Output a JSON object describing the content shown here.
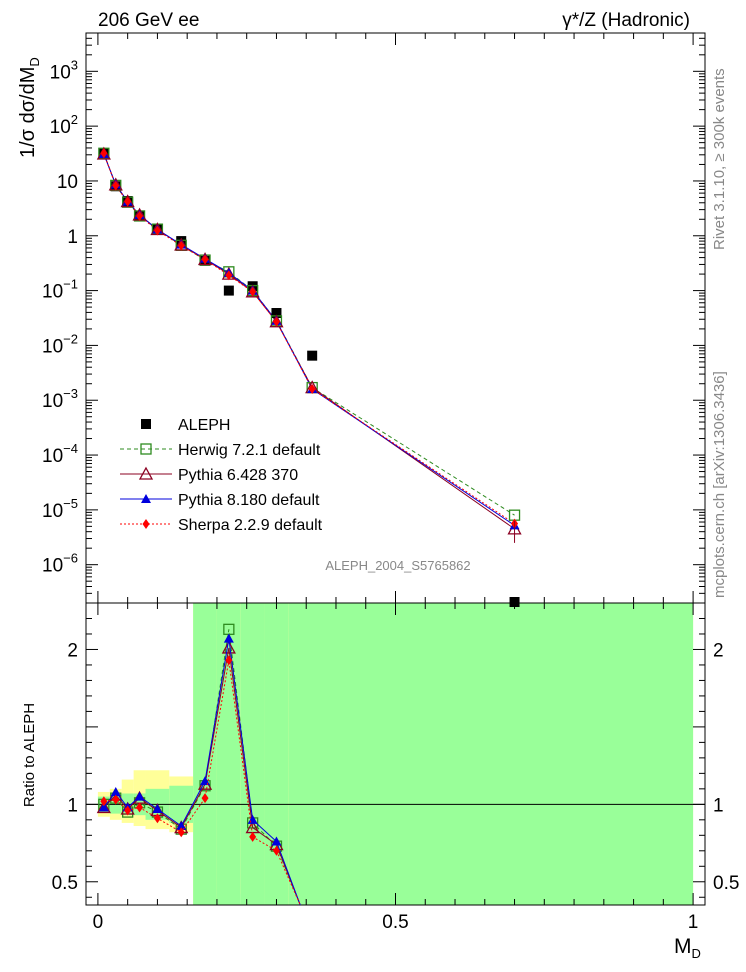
{
  "header": {
    "left": "206 GeV ee",
    "right": "γ*/Z (Hadronic)"
  },
  "side_text": {
    "rivet": "Rivet 3.1.10, ≥ 300k events",
    "mcplots": "mcplots.cern.ch [arXiv:1306.3436]"
  },
  "analysis_id": "ALEPH_2004_S5765862",
  "colors": {
    "data": "#000000",
    "herwig": "#2e8b1f",
    "pythia6": "#8b0022",
    "pythia8": "#0000dd",
    "sherpa": "#ff0000",
    "band_inner": "#99ff99",
    "band_outer": "#ffff99"
  },
  "chart_data": [
    {
      "type": "scatter",
      "panel": "main",
      "ylabel": "1/σ dσ/dM_D",
      "yscale": "log",
      "ylim": [
        2e-07,
        5000
      ],
      "xlim": [
        -0.02,
        1.02
      ],
      "yticks": [
        {
          "v": 1e-06,
          "base": "10",
          "exp": "−6"
        },
        {
          "v": 1e-05,
          "base": "10",
          "exp": "−5"
        },
        {
          "v": 0.0001,
          "base": "10",
          "exp": "−4"
        },
        {
          "v": 0.001,
          "base": "10",
          "exp": "−3"
        },
        {
          "v": 0.01,
          "base": "10",
          "exp": "−2"
        },
        {
          "v": 0.1,
          "base": "10",
          "exp": "−1"
        },
        {
          "v": 1,
          "base": "1",
          "exp": ""
        },
        {
          "v": 10,
          "base": "10",
          "exp": ""
        },
        {
          "v": 100,
          "base": "10",
          "exp": "2"
        },
        {
          "v": 1000,
          "base": "10",
          "exp": "3"
        }
      ],
      "data": {
        "name": "ALEPH",
        "x": [
          0.01,
          0.03,
          0.05,
          0.07,
          0.1,
          0.14,
          0.18,
          0.22,
          0.26,
          0.3,
          0.36,
          0.7
        ],
        "y": [
          32,
          8.0,
          4.3,
          2.3,
          1.35,
          0.8,
          0.35,
          0.1,
          0.12,
          0.039,
          0.0065,
          2e-07
        ]
      },
      "series": [
        {
          "name": "Herwig 7.2.1 default",
          "key": "herwig",
          "x": [
            0.01,
            0.03,
            0.05,
            0.07,
            0.1,
            0.14,
            0.18,
            0.22,
            0.26,
            0.3,
            0.36,
            0.7
          ],
          "y": [
            32,
            8.3,
            4.1,
            2.3,
            1.32,
            0.67,
            0.36,
            0.22,
            0.1,
            0.028,
            0.0017,
            8e-06
          ]
        },
        {
          "name": "Pythia 6.428 370",
          "key": "pythia6",
          "x": [
            0.01,
            0.03,
            0.05,
            0.07,
            0.1,
            0.14,
            0.18,
            0.22,
            0.26,
            0.3,
            0.36,
            0.7
          ],
          "y": [
            31,
            8.5,
            4.2,
            2.4,
            1.3,
            0.68,
            0.37,
            0.2,
            0.095,
            0.027,
            0.0017,
            4.5e-06
          ]
        },
        {
          "name": "Pythia 8.180 default",
          "key": "pythia8",
          "x": [
            0.01,
            0.03,
            0.05,
            0.07,
            0.1,
            0.14,
            0.18,
            0.22,
            0.26,
            0.3,
            0.36,
            0.7
          ],
          "y": [
            31,
            8.6,
            4.2,
            2.4,
            1.3,
            0.69,
            0.38,
            0.21,
            0.1,
            0.028,
            0.0016,
            5.2e-06
          ]
        },
        {
          "name": "Sherpa 2.2.9 default",
          "key": "sherpa",
          "x": [
            0.01,
            0.03,
            0.05,
            0.07,
            0.1,
            0.14,
            0.18,
            0.22,
            0.26,
            0.3,
            0.36,
            0.7
          ],
          "y": [
            32,
            8.2,
            4.2,
            2.3,
            1.25,
            0.66,
            0.37,
            0.19,
            0.095,
            0.027,
            0.0016,
            5.6e-06
          ]
        }
      ]
    },
    {
      "type": "line",
      "panel": "ratio",
      "ylabel": "Ratio to ALEPH",
      "xlabel": "M_D",
      "ylim": [
        0.35,
        2.3
      ],
      "xlim": [
        -0.02,
        1.02
      ],
      "xticks": [
        0,
        0.5,
        1
      ],
      "xtick_labels": [
        "0",
        "0.5",
        "1"
      ],
      "yticks": [
        0.5,
        1,
        2
      ],
      "ytick_labels": [
        "0.5",
        "1",
        "2"
      ],
      "bands": {
        "edges": [
          0,
          0.02,
          0.04,
          0.06,
          0.08,
          0.12,
          0.16,
          0.2,
          0.24,
          0.28,
          0.32,
          1.0
        ],
        "inner": [
          [
            0.95,
            1.05
          ],
          [
            0.94,
            1.06
          ],
          [
            0.93,
            1.07
          ],
          [
            0.93,
            1.07
          ],
          [
            0.9,
            1.1
          ],
          [
            0.88,
            1.12
          ],
          [
            0.35,
            2.3
          ],
          [
            0.35,
            2.3
          ],
          [
            0.35,
            2.3
          ],
          [
            0.35,
            2.3
          ],
          [
            0.35,
            2.3
          ]
        ],
        "outer": [
          [
            0.92,
            1.08
          ],
          [
            0.9,
            1.1
          ],
          [
            0.88,
            1.16
          ],
          [
            0.86,
            1.22
          ],
          [
            0.84,
            1.22
          ],
          [
            0.82,
            1.18
          ],
          [
            0.35,
            2.3
          ],
          [
            0.35,
            2.3
          ],
          [
            0.42,
            2.3
          ],
          [
            0.35,
            2.3
          ],
          [
            0.35,
            2.3
          ]
        ]
      },
      "series": [
        {
          "key": "herwig",
          "x": [
            0.01,
            0.03,
            0.05,
            0.07,
            0.1,
            0.14,
            0.18,
            0.22,
            0.26,
            0.3,
            0.34
          ],
          "y": [
            1.0,
            1.04,
            0.95,
            1.01,
            0.95,
            0.84,
            1.12,
            2.13,
            0.88,
            0.73,
            0.35
          ]
        },
        {
          "key": "pythia6",
          "x": [
            0.01,
            0.03,
            0.05,
            0.07,
            0.1,
            0.14,
            0.18,
            0.22,
            0.26,
            0.3,
            0.34
          ],
          "y": [
            0.98,
            1.06,
            0.97,
            1.04,
            0.96,
            0.85,
            1.13,
            2.01,
            0.85,
            0.74,
            0.35
          ]
        },
        {
          "key": "pythia8",
          "x": [
            0.01,
            0.03,
            0.05,
            0.07,
            0.1,
            0.14,
            0.18,
            0.22,
            0.26,
            0.3,
            0.34
          ],
          "y": [
            0.98,
            1.08,
            0.98,
            1.05,
            0.97,
            0.86,
            1.15,
            2.07,
            0.9,
            0.76,
            0.35
          ]
        },
        {
          "key": "sherpa",
          "x": [
            0.01,
            0.03,
            0.05,
            0.07,
            0.1,
            0.14,
            0.18,
            0.22,
            0.26,
            0.3,
            0.34
          ],
          "y": [
            1.02,
            1.03,
            0.96,
            0.98,
            0.91,
            0.82,
            1.04,
            1.93,
            0.79,
            0.7,
            0.35
          ]
        }
      ]
    }
  ]
}
